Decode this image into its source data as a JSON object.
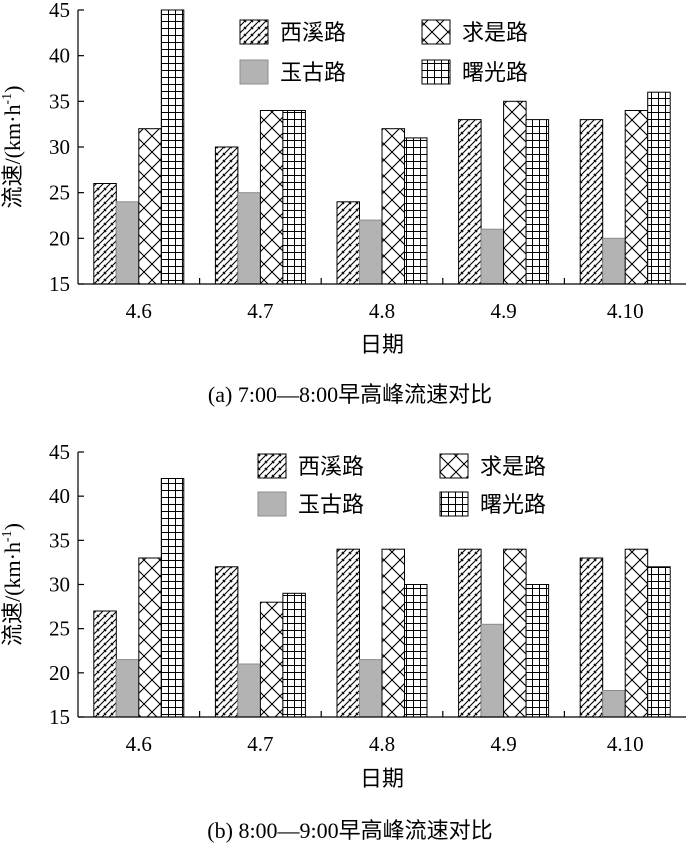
{
  "colors": {
    "axis": "#000000",
    "gray_fill": "#b3b3b3",
    "background": "#ffffff"
  },
  "chart_data": [
    {
      "type": "bar",
      "caption": "(a) 7:00—8:00早高峰流速对比",
      "xlabel": "日期",
      "ylabel": "流速/(km·h",
      "ylabel_sup": "-1",
      "ylabel_close": ")",
      "ylim": [
        15,
        45
      ],
      "yticks": [
        15,
        20,
        25,
        30,
        35,
        40,
        45
      ],
      "categories": [
        "4.6",
        "4.7",
        "4.8",
        "4.9",
        "4.10"
      ],
      "legend_position": "top-center",
      "series": [
        {
          "name": "西溪路",
          "pattern": "diagonal",
          "values": [
            26,
            30,
            24,
            33,
            33
          ]
        },
        {
          "name": "玉古路",
          "pattern": "gray",
          "values": [
            24,
            25,
            22,
            21,
            20
          ]
        },
        {
          "name": "求是路",
          "pattern": "crosshatch",
          "values": [
            32,
            34,
            32,
            35,
            34
          ]
        },
        {
          "name": "曙光路",
          "pattern": "grid",
          "values": [
            45,
            34,
            31,
            33,
            36
          ]
        }
      ]
    },
    {
      "type": "bar",
      "caption": "(b) 8:00—9:00早高峰流速对比",
      "xlabel": "日期",
      "ylabel": "流速/(km·h",
      "ylabel_sup": "-1",
      "ylabel_close": ")",
      "ylim": [
        15,
        45
      ],
      "yticks": [
        15,
        20,
        25,
        30,
        35,
        40,
        45
      ],
      "categories": [
        "4.6",
        "4.7",
        "4.8",
        "4.9",
        "4.10"
      ],
      "legend_position": "top-center",
      "series": [
        {
          "name": "西溪路",
          "pattern": "diagonal",
          "values": [
            27,
            32,
            34,
            34,
            33
          ]
        },
        {
          "name": "玉古路",
          "pattern": "gray",
          "values": [
            21.5,
            21,
            21.5,
            25.5,
            18
          ]
        },
        {
          "name": "求是路",
          "pattern": "crosshatch",
          "values": [
            33,
            28,
            34,
            34,
            34
          ]
        },
        {
          "name": "曙光路",
          "pattern": "grid",
          "values": [
            42,
            29,
            30,
            30,
            32
          ]
        }
      ]
    }
  ]
}
